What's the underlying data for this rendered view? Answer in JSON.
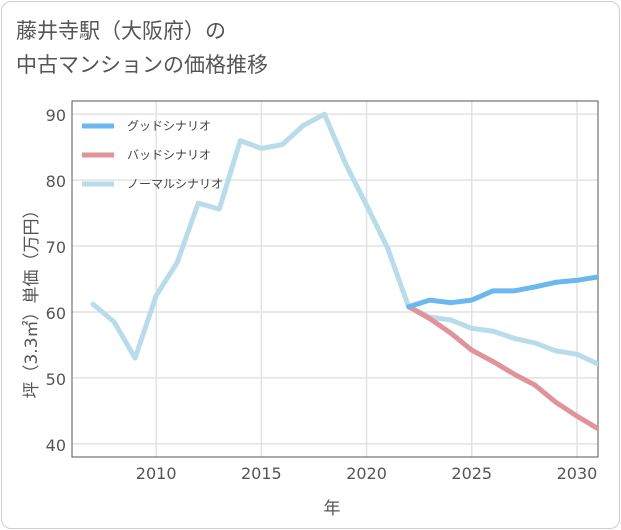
{
  "title_line1": "藤井寺駅（大阪府）の",
  "title_line2": "中古マンションの価格推移",
  "chart_data": {
    "type": "line",
    "title": "藤井寺駅（大阪府）の中古マンションの価格推移",
    "xlabel": "年",
    "ylabel": "坪（3.3㎡）単価（万円）",
    "xlim": [
      2006,
      2031
    ],
    "ylim": [
      38,
      92
    ],
    "xticks": [
      2010,
      2015,
      2020,
      2025,
      2030
    ],
    "yticks": [
      40,
      50,
      60,
      70,
      80,
      90
    ],
    "legend_position": "top-left",
    "series": [
      {
        "name": "グッドシナリオ",
        "color": "#6ab8ee",
        "x": [
          2022,
          2023,
          2024,
          2025,
          2026,
          2027,
          2028,
          2029,
          2030,
          2031
        ],
        "values": [
          60.8,
          61.8,
          61.4,
          61.8,
          63.2,
          63.2,
          63.8,
          64.5,
          64.8,
          65.3
        ]
      },
      {
        "name": "バッドシナリオ",
        "color": "#e0939b",
        "x": [
          2022,
          2023,
          2024,
          2025,
          2026,
          2027,
          2028,
          2029,
          2030,
          2031
        ],
        "values": [
          60.8,
          59.0,
          56.8,
          54.2,
          52.5,
          50.6,
          48.9,
          46.3,
          44.2,
          42.3
        ]
      },
      {
        "name": "ノーマルシナリオ",
        "color": "#b9dcea",
        "x": [
          2007,
          2008,
          2009,
          2010,
          2011,
          2012,
          2013,
          2014,
          2015,
          2016,
          2017,
          2018,
          2019,
          2020,
          2021,
          2022,
          2023,
          2024,
          2025,
          2026,
          2027,
          2028,
          2029,
          2030,
          2031
        ],
        "values": [
          61.2,
          58.5,
          53.0,
          62.5,
          67.5,
          76.5,
          75.6,
          86.0,
          84.8,
          85.4,
          88.3,
          90.0,
          82.5,
          76.2,
          69.7,
          60.8,
          59.2,
          58.8,
          57.5,
          57.1,
          56.0,
          55.3,
          54.1,
          53.6,
          52.1
        ]
      }
    ]
  }
}
